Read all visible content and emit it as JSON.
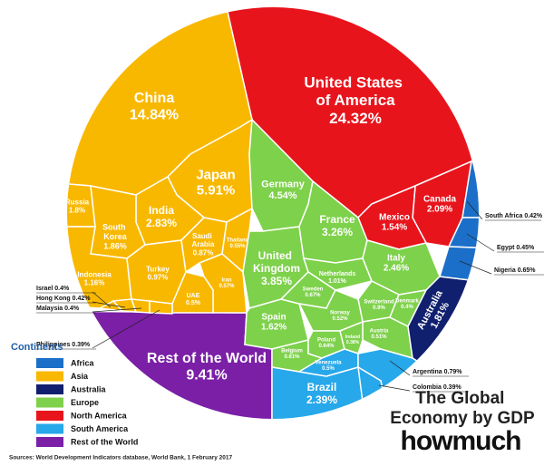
{
  "chart_data": {
    "type": "voronoi-treemap",
    "title": "The Global Economy by GDP",
    "brand": "howmuch",
    "source": "Sources: World Development Indicators database, World Bank, 1 February 2017",
    "legend_title": "Continents",
    "continents": [
      {
        "name": "Africa",
        "color": "#1b6fc8"
      },
      {
        "name": "Asia",
        "color": "#f9b800"
      },
      {
        "name": "Australia",
        "color": "#101f6e"
      },
      {
        "name": "Europe",
        "color": "#7ed14b"
      },
      {
        "name": "North America",
        "color": "#e8141c"
      },
      {
        "name": "South America",
        "color": "#27a8ea"
      },
      {
        "name": "Rest of the World",
        "color": "#7a1fa6"
      }
    ],
    "cells": [
      {
        "name": "United States of America",
        "value": 24.32,
        "value_label": "24.32%",
        "continent": "North America"
      },
      {
        "name": "Canada",
        "value": 2.09,
        "value_label": "2.09%",
        "continent": "North America"
      },
      {
        "name": "Mexico",
        "value": 1.54,
        "value_label": "1.54%",
        "continent": "North America"
      },
      {
        "name": "China",
        "value": 14.84,
        "value_label": "14.84%",
        "continent": "Asia"
      },
      {
        "name": "Japan",
        "value": 5.91,
        "value_label": "5.91%",
        "continent": "Asia"
      },
      {
        "name": "India",
        "value": 2.83,
        "value_label": "2.83%",
        "continent": "Asia"
      },
      {
        "name": "Russia",
        "value": 1.8,
        "value_label": "1.8%",
        "continent": "Asia"
      },
      {
        "name": "South Korea",
        "value": 1.86,
        "value_label": "1.86%",
        "continent": "Asia"
      },
      {
        "name": "Indonesia",
        "value": 1.16,
        "value_label": "1.16%",
        "continent": "Asia"
      },
      {
        "name": "Turkey",
        "value": 0.97,
        "value_label": "0.97%",
        "continent": "Asia"
      },
      {
        "name": "Saudi Arabia",
        "value": 0.87,
        "value_label": "0.87%",
        "continent": "Asia"
      },
      {
        "name": "Thailand",
        "value": 0.55,
        "value_label": "0.55%",
        "continent": "Asia"
      },
      {
        "name": "Iran",
        "value": 0.57,
        "value_label": "0.57%",
        "continent": "Asia"
      },
      {
        "name": "UAE",
        "value": 0.5,
        "value_label": "0.5%",
        "continent": "Asia"
      },
      {
        "name": "Israel",
        "value": 0.4,
        "value_label": "0.4%",
        "continent": "Asia"
      },
      {
        "name": "Hong Kong",
        "value": 0.42,
        "value_label": "0.42%",
        "continent": "Asia"
      },
      {
        "name": "Malaysia",
        "value": 0.4,
        "value_label": "0.4%",
        "continent": "Asia"
      },
      {
        "name": "Philippines",
        "value": 0.39,
        "value_label": "0.39%",
        "continent": "Asia"
      },
      {
        "name": "Germany",
        "value": 4.54,
        "value_label": "4.54%",
        "continent": "Europe"
      },
      {
        "name": "United Kingdom",
        "value": 3.85,
        "value_label": "3.85%",
        "continent": "Europe"
      },
      {
        "name": "France",
        "value": 3.26,
        "value_label": "3.26%",
        "continent": "Europe"
      },
      {
        "name": "Italy",
        "value": 2.46,
        "value_label": "2.46%",
        "continent": "Europe"
      },
      {
        "name": "Netherlands",
        "value": 1.01,
        "value_label": "1.01%",
        "continent": "Europe"
      },
      {
        "name": "Spain",
        "value": 1.62,
        "value_label": "1.62%",
        "continent": "Europe"
      },
      {
        "name": "Sweden",
        "value": 0.67,
        "value_label": "0.67%",
        "continent": "Europe"
      },
      {
        "name": "Switzerland",
        "value": 0.9,
        "value_label": "0.9%",
        "continent": "Europe"
      },
      {
        "name": "Norway",
        "value": 0.52,
        "value_label": "0.52%",
        "continent": "Europe"
      },
      {
        "name": "Belgium",
        "value": 0.61,
        "value_label": "0.61%",
        "continent": "Europe"
      },
      {
        "name": "Poland",
        "value": 0.64,
        "value_label": "0.64%",
        "continent": "Europe"
      },
      {
        "name": "Austria",
        "value": 0.51,
        "value_label": "0.51%",
        "continent": "Europe"
      },
      {
        "name": "Ireland",
        "value": 0.38,
        "value_label": "0.38%",
        "continent": "Europe"
      },
      {
        "name": "Denmark",
        "value": 0.4,
        "value_label": "0.4%",
        "continent": "Europe"
      },
      {
        "name": "Australia",
        "value": 1.81,
        "value_label": "1.81%",
        "continent": "Australia"
      },
      {
        "name": "South Africa",
        "value": 0.42,
        "value_label": "0.42%",
        "continent": "Africa"
      },
      {
        "name": "Egypt",
        "value": 0.45,
        "value_label": "0.45%",
        "continent": "Africa"
      },
      {
        "name": "Nigeria",
        "value": 0.65,
        "value_label": "0.65%",
        "continent": "Africa"
      },
      {
        "name": "Brazil",
        "value": 2.39,
        "value_label": "2.39%",
        "continent": "South America"
      },
      {
        "name": "Venezuela",
        "value": 0.5,
        "value_label": "0.5%",
        "continent": "South America"
      },
      {
        "name": "Argentina",
        "value": 0.79,
        "value_label": "0.79%",
        "continent": "South America"
      },
      {
        "name": "Colombia",
        "value": 0.39,
        "value_label": "0.39%",
        "continent": "South America"
      },
      {
        "name": "Rest of the World",
        "value": 9.41,
        "value_label": "9.41%",
        "continent": "Rest of the World"
      }
    ]
  }
}
